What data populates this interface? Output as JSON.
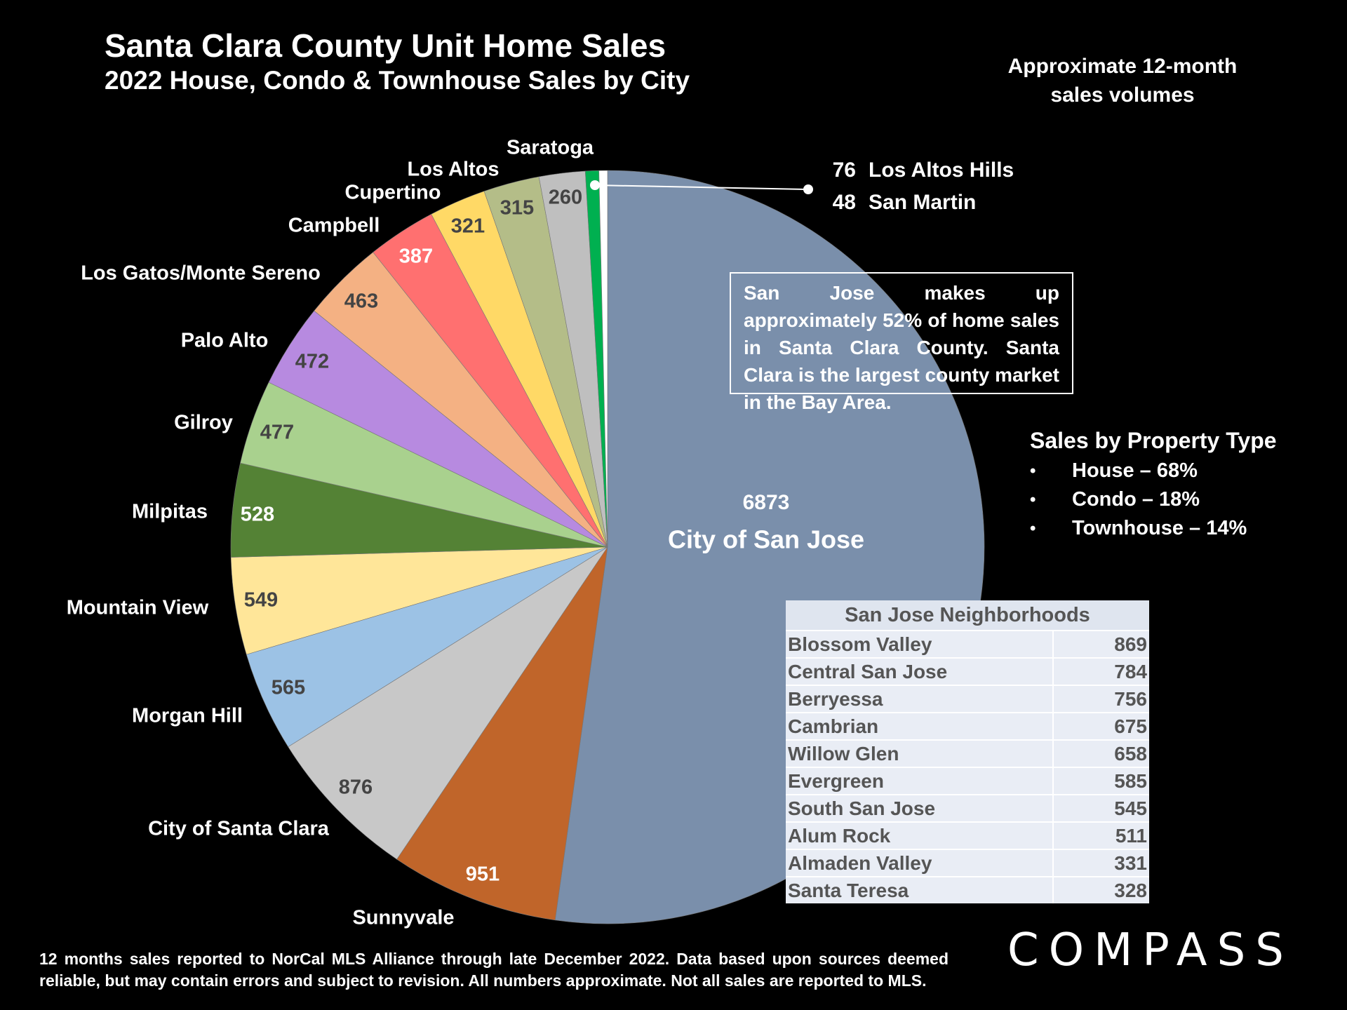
{
  "header": {
    "title": "Santa Clara County Unit Home Sales",
    "subtitle": "2022 House, Condo & Townhouse Sales by City",
    "approx_note": "Approximate 12-month sales volumes"
  },
  "chart_data": {
    "type": "pie",
    "slices": [
      {
        "label": "City of San Jose",
        "value": 6873,
        "color": "#7a8fab"
      },
      {
        "label": "Sunnyvale",
        "value": 951,
        "color": "#c0652a"
      },
      {
        "label": "City of Santa Clara",
        "value": 876,
        "color": "#c8c8c8"
      },
      {
        "label": "Morgan Hill",
        "value": 565,
        "color": "#9cc2e5"
      },
      {
        "label": "Mountain View",
        "value": 549,
        "color": "#ffe699"
      },
      {
        "label": "Milpitas",
        "value": 528,
        "color": "#548235"
      },
      {
        "label": "Gilroy",
        "value": 477,
        "color": "#a9d18e"
      },
      {
        "label": "Palo Alto",
        "value": 472,
        "color": "#b78ae0"
      },
      {
        "label": "Los Gatos/Monte Sereno",
        "value": 463,
        "color": "#f4b183"
      },
      {
        "label": "Campbell",
        "value": 387,
        "color": "#ff7070"
      },
      {
        "label": "Cupertino",
        "value": 321,
        "color": "#ffd966"
      },
      {
        "label": "Los Altos",
        "value": 315,
        "color": "#b4bd88"
      },
      {
        "label": "Saratoga",
        "value": 260,
        "color": "#bfbfbf"
      },
      {
        "label": "Los Altos Hills",
        "value": 76,
        "color": "#00b050"
      },
      {
        "label": "San Martin",
        "value": 48,
        "color": "#ffffff"
      }
    ]
  },
  "callout": {
    "items": [
      {
        "value": "76",
        "label": "Los Altos Hills"
      },
      {
        "value": "48",
        "label": "San Martin"
      }
    ]
  },
  "note": "San Jose makes up approximately 52% of home sales in Santa Clara County. Santa Clara is the largest county market in the Bay Area.",
  "property_type": {
    "title": "Sales by Property Type",
    "items": [
      "House – 68%",
      "Condo – 18%",
      "Townhouse – 14%"
    ]
  },
  "neighborhoods": {
    "title": "San Jose Neighborhoods",
    "rows": [
      {
        "name": "Blossom Valley",
        "value": "869"
      },
      {
        "name": "Central San Jose",
        "value": "784"
      },
      {
        "name": "Berryessa",
        "value": "756"
      },
      {
        "name": "Cambrian",
        "value": "675"
      },
      {
        "name": "Willow Glen",
        "value": "658"
      },
      {
        "name": "Evergreen",
        "value": "585"
      },
      {
        "name": "South San Jose",
        "value": "545"
      },
      {
        "name": "Alum Rock",
        "value": "511"
      },
      {
        "name": "Almaden Valley",
        "value": "331"
      },
      {
        "name": "Santa Teresa",
        "value": "328"
      }
    ]
  },
  "footer": "12 months sales reported to NorCal MLS Alliance through late December 2022. Data based upon sources deemed reliable, but may contain errors and subject to revision. All numbers approximate. Not all sales are reported to MLS.",
  "logo": "COMPASS"
}
